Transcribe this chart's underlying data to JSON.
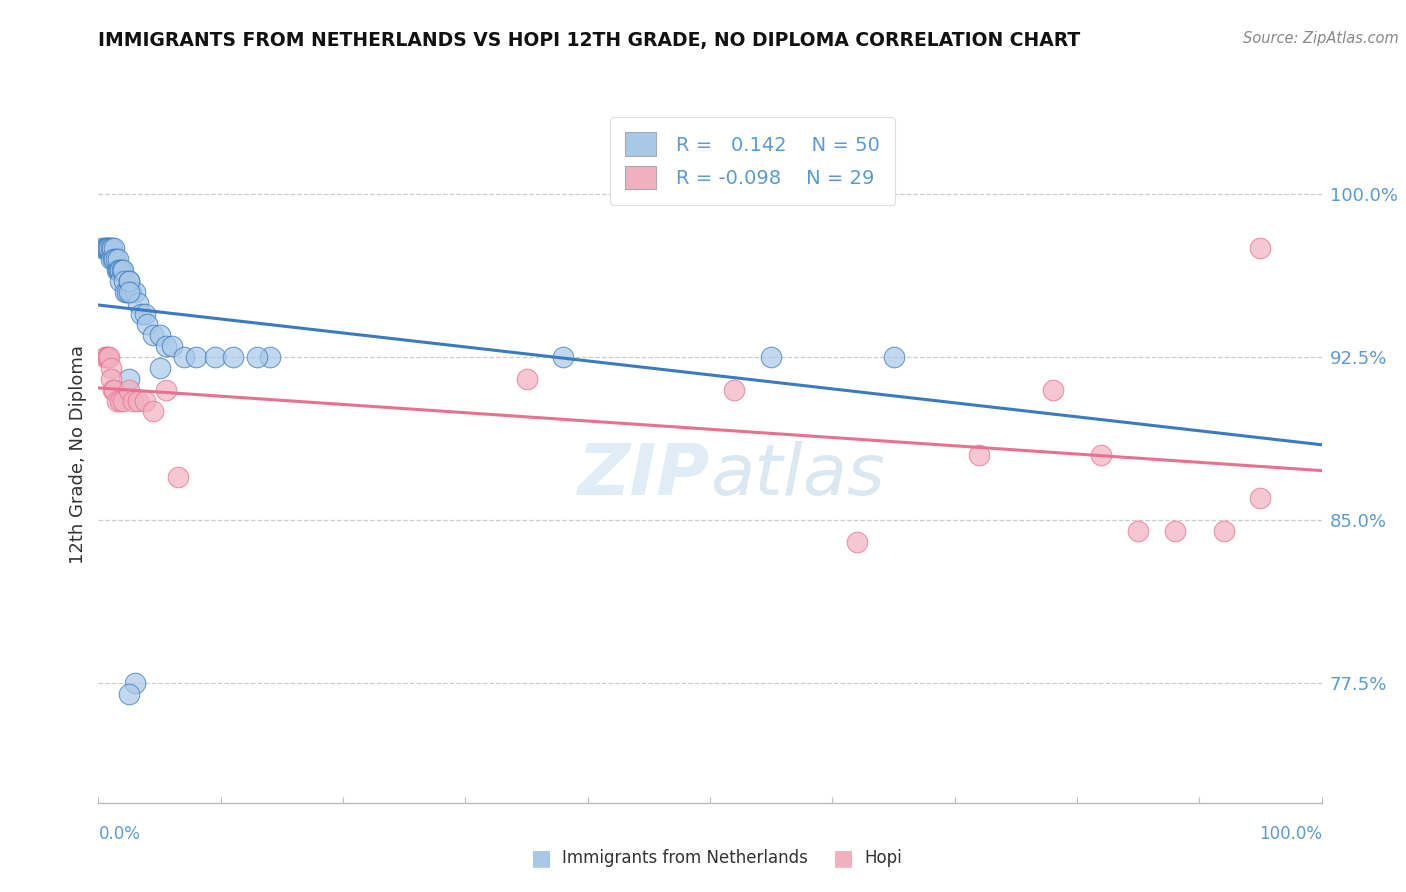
{
  "title": "IMMIGRANTS FROM NETHERLANDS VS HOPI 12TH GRADE, NO DIPLOMA CORRELATION CHART",
  "source": "Source: ZipAtlas.com",
  "ylabel": "12th Grade, No Diploma",
  "yticks": [
    "77.5%",
    "85.0%",
    "92.5%",
    "100.0%"
  ],
  "ytick_values": [
    0.775,
    0.85,
    0.925,
    1.0
  ],
  "xlim": [
    0.0,
    1.0
  ],
  "ylim": [
    0.72,
    1.04
  ],
  "legend_r_blue": "0.142",
  "legend_n_blue": "50",
  "legend_r_pink": "-0.098",
  "legend_n_pink": "29",
  "blue_color": "#a8c8e8",
  "pink_color": "#f0b0c0",
  "trendline_blue": "#3a7bbf",
  "trendline_pink": "#e87090",
  "watermark_zip": "ZIP",
  "watermark_atlas": "atlas",
  "blue_scatter_x": [
    0.003,
    0.005,
    0.006,
    0.007,
    0.008,
    0.009,
    0.01,
    0.01,
    0.011,
    0.012,
    0.013,
    0.013,
    0.014,
    0.015,
    0.016,
    0.016,
    0.017,
    0.018,
    0.018,
    0.019,
    0.02,
    0.021,
    0.022,
    0.023,
    0.025,
    0.027,
    0.03,
    0.032,
    0.035,
    0.038,
    0.04,
    0.045,
    0.05,
    0.055,
    0.06,
    0.07,
    0.08,
    0.095,
    0.11,
    0.14,
    0.05,
    0.38,
    0.55,
    0.65,
    0.025,
    0.13,
    0.025,
    0.025,
    0.03,
    0.025
  ],
  "blue_scatter_y": [
    0.975,
    0.975,
    0.975,
    0.975,
    0.975,
    0.975,
    0.975,
    0.97,
    0.975,
    0.97,
    0.975,
    0.97,
    0.97,
    0.965,
    0.965,
    0.97,
    0.965,
    0.965,
    0.96,
    0.965,
    0.965,
    0.96,
    0.955,
    0.955,
    0.96,
    0.955,
    0.955,
    0.95,
    0.945,
    0.945,
    0.94,
    0.935,
    0.935,
    0.93,
    0.93,
    0.925,
    0.925,
    0.925,
    0.925,
    0.925,
    0.92,
    0.925,
    0.925,
    0.925,
    0.915,
    0.925,
    0.96,
    0.955,
    0.775,
    0.77
  ],
  "pink_scatter_x": [
    0.005,
    0.007,
    0.008,
    0.009,
    0.01,
    0.01,
    0.012,
    0.013,
    0.015,
    0.018,
    0.02,
    0.025,
    0.028,
    0.032,
    0.038,
    0.045,
    0.055,
    0.065,
    0.35,
    0.52,
    0.62,
    0.72,
    0.78,
    0.82,
    0.85,
    0.88,
    0.92,
    0.95,
    0.95
  ],
  "pink_scatter_y": [
    0.925,
    0.925,
    0.925,
    0.925,
    0.92,
    0.915,
    0.91,
    0.91,
    0.905,
    0.905,
    0.905,
    0.91,
    0.905,
    0.905,
    0.905,
    0.9,
    0.91,
    0.87,
    0.915,
    0.91,
    0.84,
    0.88,
    0.91,
    0.88,
    0.845,
    0.845,
    0.845,
    0.975,
    0.86
  ]
}
